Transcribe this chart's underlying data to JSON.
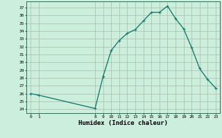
{
  "x": [
    0,
    1,
    8,
    9,
    10,
    11,
    12,
    13,
    14,
    15,
    16,
    17,
    18,
    19,
    20,
    21,
    22,
    23
  ],
  "y": [
    26.0,
    25.8,
    24.1,
    28.2,
    31.5,
    32.8,
    33.7,
    34.2,
    35.3,
    36.4,
    36.4,
    37.2,
    35.6,
    34.3,
    31.9,
    29.2,
    27.8,
    26.7
  ],
  "xlabel": "Humidex (Indice chaleur)",
  "xlim": [
    -0.5,
    23.5
  ],
  "ylim": [
    23.5,
    37.8
  ],
  "yticks": [
    24,
    25,
    26,
    27,
    28,
    29,
    30,
    31,
    32,
    33,
    34,
    35,
    36,
    37
  ],
  "xticks": [
    0,
    1,
    8,
    9,
    10,
    11,
    12,
    13,
    14,
    15,
    16,
    17,
    18,
    19,
    20,
    21,
    22,
    23
  ],
  "line_color": "#1a7a6e",
  "bg_color": "#cceedd",
  "grid_color": "#aabbaa",
  "marker_size": 2.5,
  "line_width": 1.0
}
